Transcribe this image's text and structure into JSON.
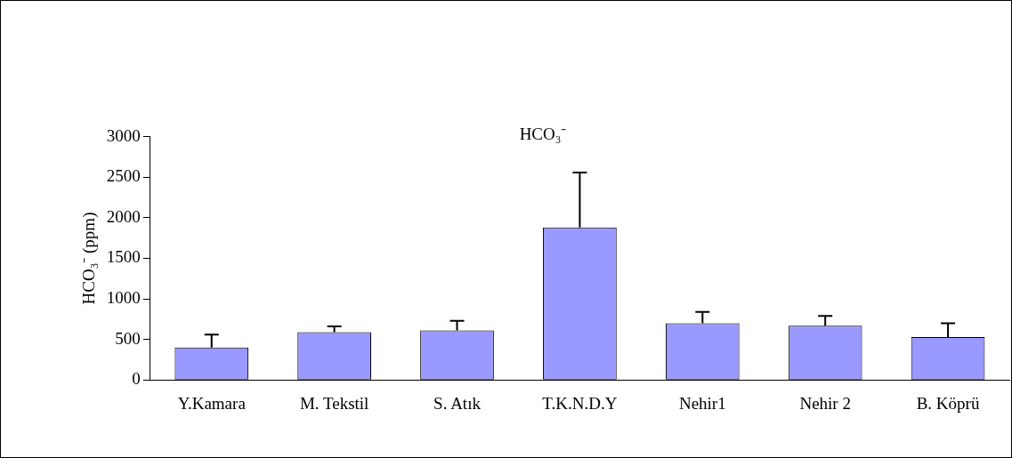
{
  "chart_data": {
    "type": "bar",
    "title": "HCO₃⁻",
    "ylabel": "HCO₃⁻ (ppm)",
    "categories": [
      "Y.Kamara",
      "M. Tekstil",
      "S. Atık",
      "T.K.N.D.Y",
      "Nehir1",
      "Nehir 2",
      "B. Köprü"
    ],
    "values": [
      400,
      590,
      610,
      1880,
      700,
      670,
      530
    ],
    "errors": [
      [
        400,
        560
      ],
      [
        590,
        660
      ],
      [
        610,
        730
      ],
      [
        1880,
        2560
      ],
      [
        700,
        840
      ],
      [
        670,
        790
      ],
      [
        530,
        700
      ]
    ],
    "color": "#9999ff",
    "ylim": [
      0,
      3000
    ],
    "yticks": [
      0,
      500,
      1000,
      1500,
      2000,
      2500,
      3000
    ],
    "grid": false,
    "legend": false
  }
}
